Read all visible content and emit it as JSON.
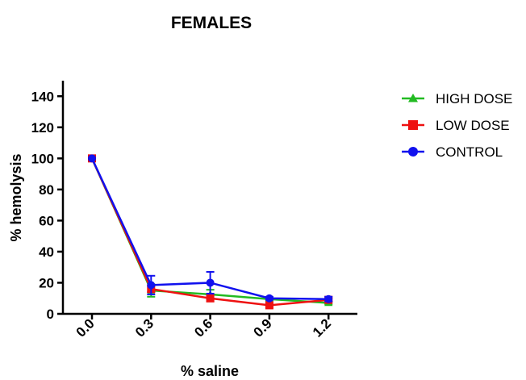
{
  "chart_data": {
    "type": "line",
    "title": "FEMALES",
    "xlabel": "% saline",
    "ylabel": "% hemolysis",
    "x": [
      0.0,
      0.3,
      0.6,
      0.9,
      1.2
    ],
    "x_tick_labels": [
      "0.0",
      "0.3",
      "0.6",
      "0.9",
      "1.2"
    ],
    "ylim": [
      0,
      150
    ],
    "y_ticks": [
      0,
      20,
      40,
      60,
      80,
      100,
      120,
      140
    ],
    "y_tick_labels": [
      "0",
      "20",
      "40",
      "60",
      "80",
      "100",
      "120",
      "140"
    ],
    "grid": false,
    "legend_position": "right",
    "series": [
      {
        "name": "HIGH DOSE",
        "color": "#22bb22",
        "marker": "triangle",
        "values": [
          100,
          15,
          12.5,
          9.5,
          7
        ],
        "errors": [
          0,
          4,
          3,
          1,
          1
        ]
      },
      {
        "name": "LOW DOSE",
        "color": "#ee1111",
        "marker": "square",
        "values": [
          100,
          16,
          10,
          5.5,
          9
        ],
        "errors": [
          0,
          2,
          2,
          1,
          1
        ]
      },
      {
        "name": "CONTROL",
        "color": "#1111ee",
        "marker": "circle",
        "values": [
          100,
          18.5,
          20,
          10,
          9.5
        ],
        "errors": [
          0,
          6,
          7,
          1,
          1.5
        ]
      }
    ]
  }
}
